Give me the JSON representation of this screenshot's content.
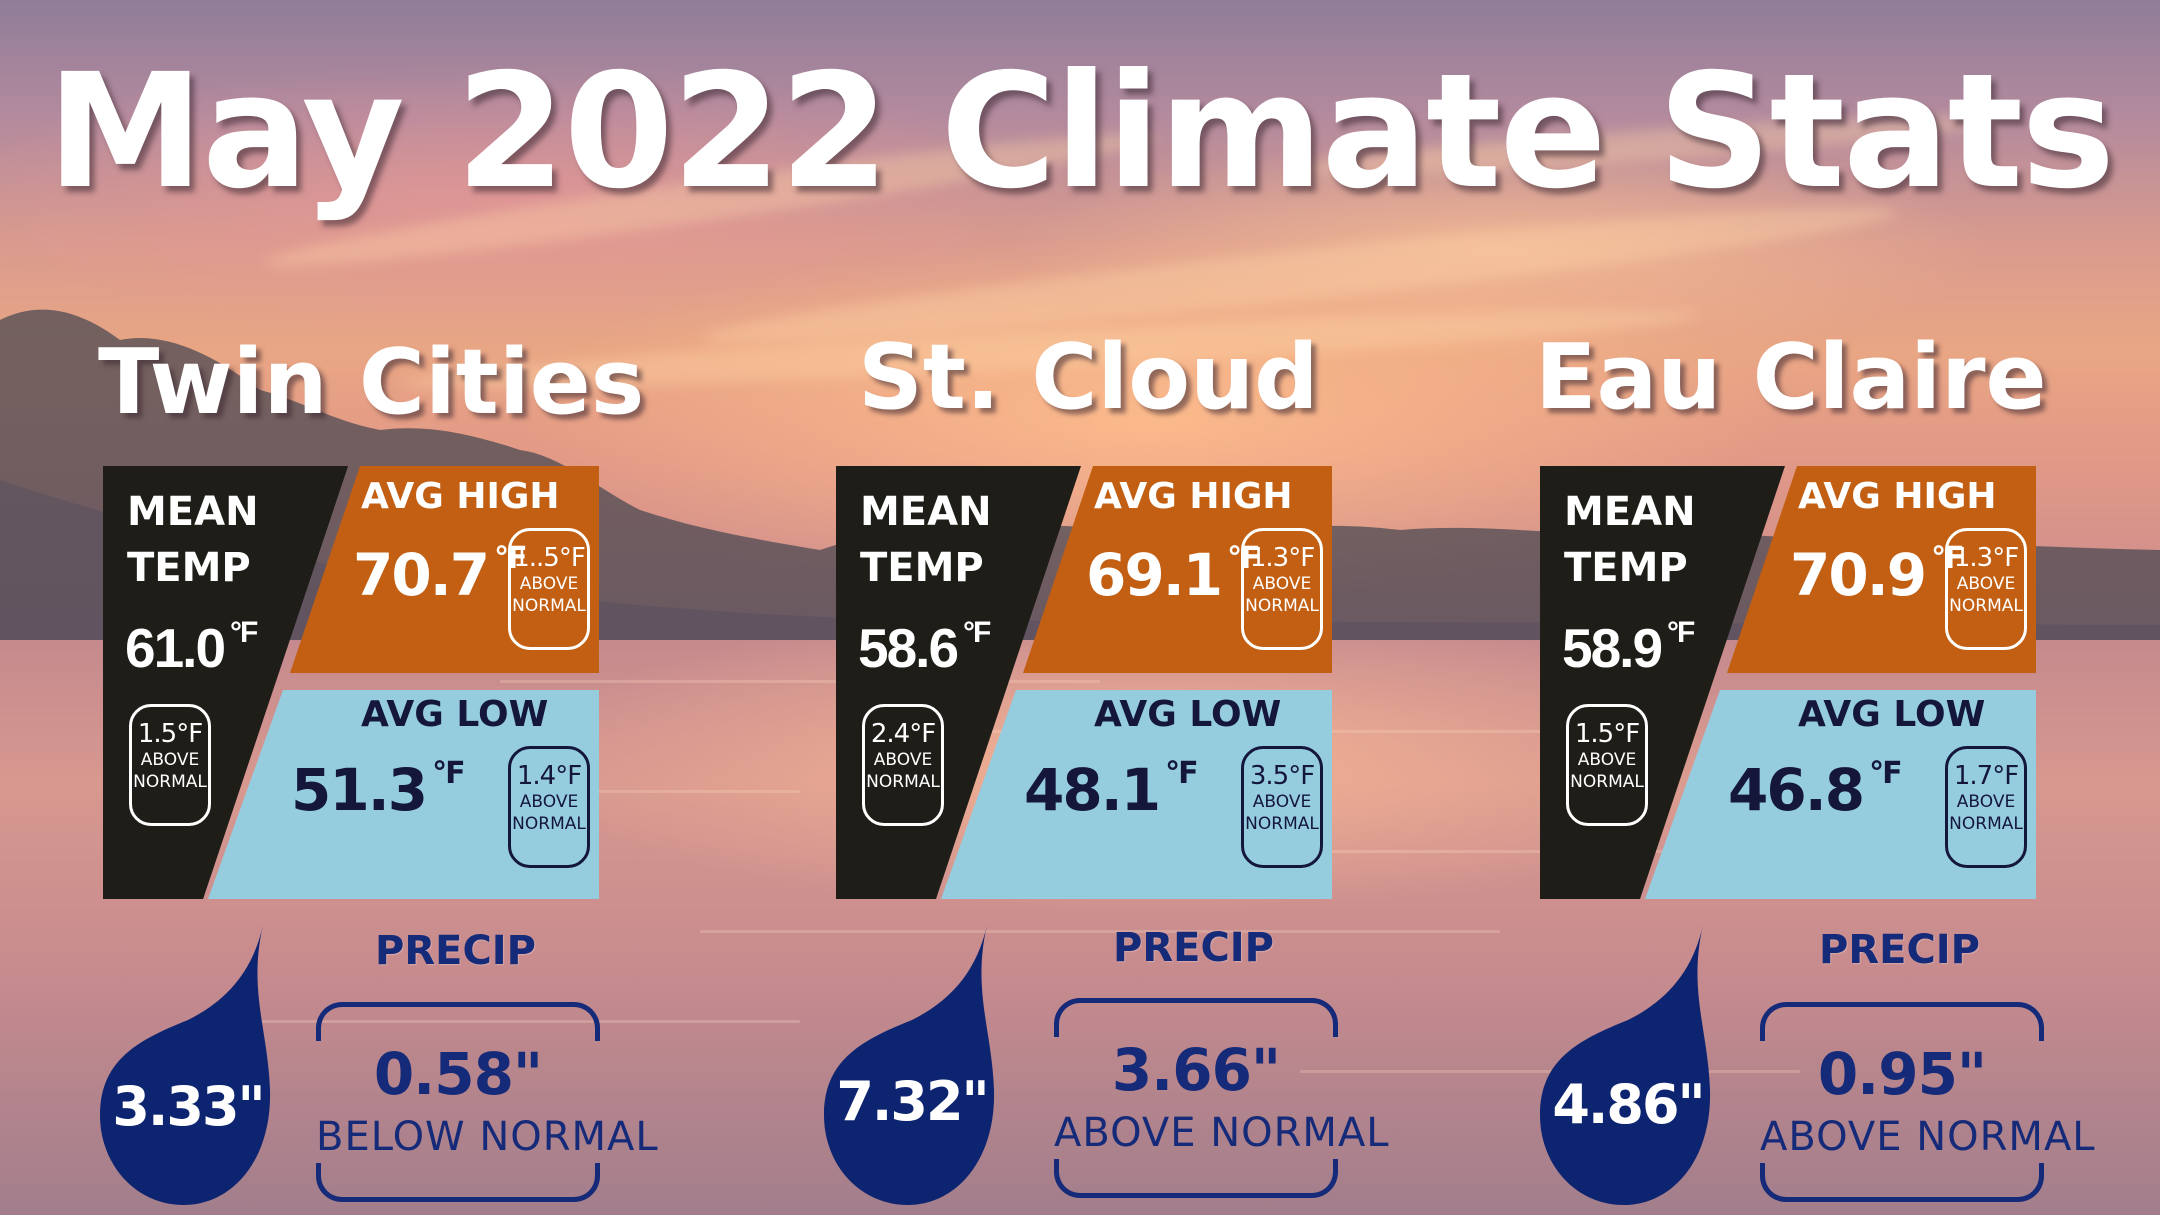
{
  "title": "May 2022 Climate Stats",
  "units": {
    "degree_f": "°F",
    "deg": "°F"
  },
  "labels": {
    "mean_temp_line1": "MEAN",
    "mean_temp_line2": "TEMP",
    "avg_high": "AVG HIGH",
    "avg_low": "AVG LOW",
    "precip": "PRECIP",
    "normal": "NORMAL"
  },
  "colors": {
    "mean_panel": "#1f1d18",
    "high_panel": "#c25f12",
    "low_panel": "#95cddf",
    "precip_blue": "#152a78",
    "drop_blue": "#0d2470"
  },
  "stations": [
    {
      "name": "Twin Cities",
      "mean_temp": "61.0",
      "mean_anom": "1.5°F",
      "mean_anom_dir": "ABOVE",
      "avg_high": "70.7",
      "high_anom": "1..5°F",
      "high_anom_dir": "ABOVE",
      "avg_low": "51.3",
      "low_anom": "1.4°F",
      "low_anom_dir": "ABOVE",
      "precip_total": "3.33\"",
      "precip_anom": "0.58\"",
      "precip_anom_text": "BELOW  NORMAL"
    },
    {
      "name": "St. Cloud",
      "mean_temp": "58.6",
      "mean_anom": "2.4°F",
      "mean_anom_dir": "ABOVE",
      "avg_high": "69.1",
      "high_anom": "1.3°F",
      "high_anom_dir": "ABOVE",
      "avg_low": "48.1",
      "low_anom": "3.5°F",
      "low_anom_dir": "ABOVE",
      "precip_total": "7.32\"",
      "precip_anom": "3.66\"",
      "precip_anom_text": "ABOVE  NORMAL"
    },
    {
      "name": "Eau Claire",
      "mean_temp": "58.9",
      "mean_anom": "1.5°F",
      "mean_anom_dir": "ABOVE",
      "avg_high": "70.9",
      "high_anom": "1.3°F",
      "high_anom_dir": "ABOVE",
      "avg_low": "46.8",
      "low_anom": "1.7°F",
      "low_anom_dir": "ABOVE",
      "precip_total": "4.86\"",
      "precip_anom": "0.95\"",
      "precip_anom_text": "ABOVE  NORMAL"
    }
  ]
}
